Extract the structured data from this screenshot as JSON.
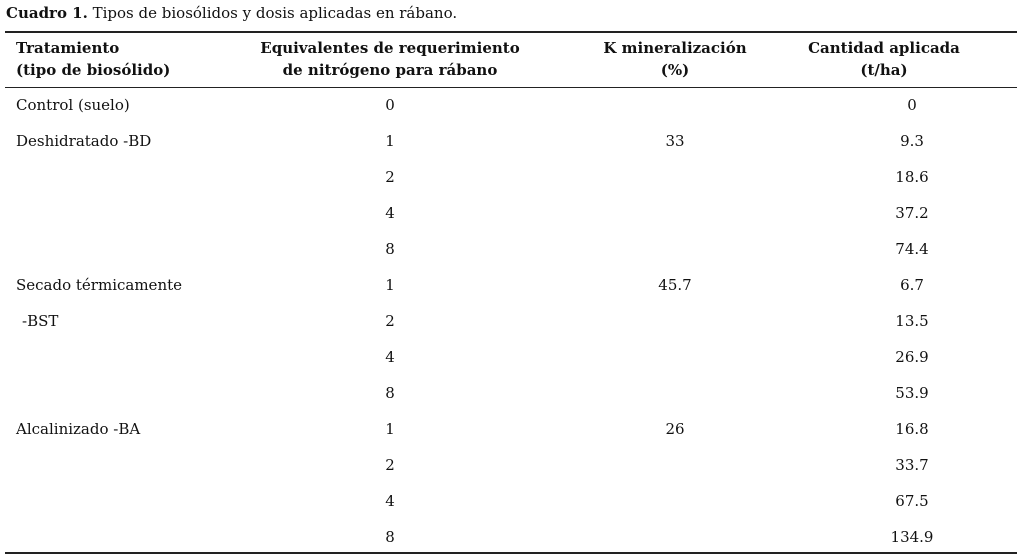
{
  "caption": {
    "label": "Cuadro 1.",
    "text": "Tipos de biosólidos y dosis aplicadas en rábano."
  },
  "table": {
    "headers": [
      {
        "lines": [
          "Tratamiento",
          "(tipo de biosólido)"
        ]
      },
      {
        "lines": [
          "Equivalentes de requerimiento",
          "de nitrógeno para rábano"
        ]
      },
      {
        "lines": [
          "K mineralización",
          "(%)"
        ]
      },
      {
        "lines": [
          "Cantidad aplicada",
          "(t/ha)"
        ]
      }
    ],
    "rows": [
      {
        "treatment": "Control (suelo)",
        "equivalent": "0",
        "amount": "0"
      },
      {
        "treatment": "Deshidratado -BD",
        "equivalent": "1",
        "k": "33",
        "amount": "9.3"
      },
      {
        "equivalent": "2",
        "amount": "18.6"
      },
      {
        "equivalent": "4",
        "amount": "37.2"
      },
      {
        "equivalent": "8",
        "amount": "74.4"
      },
      {
        "treatment": "Secado térmicamente",
        "equivalent": "1",
        "k": "45.7",
        "amount": "6.7"
      },
      {
        "treatment": "-BST",
        "equivalent": "2",
        "amount": "13.5"
      },
      {
        "equivalent": "4",
        "amount": "26.9"
      },
      {
        "equivalent": "8",
        "amount": "53.9"
      },
      {
        "treatment": "Alcalinizado -BA",
        "equivalent": "1",
        "k": "26",
        "amount": "16.8"
      },
      {
        "equivalent": "2",
        "amount": "33.7"
      },
      {
        "equivalent": "4",
        "amount": "67.5"
      },
      {
        "equivalent": "8",
        "amount": "134.9"
      }
    ]
  }
}
